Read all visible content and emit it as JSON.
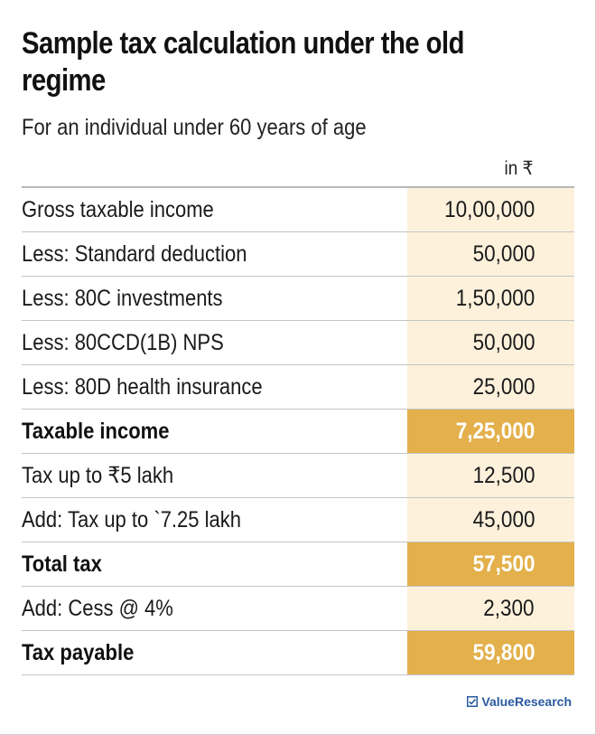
{
  "title": "Sample tax calculation under the old regime",
  "subtitle": "For an individual under 60 years of age",
  "unit": "in ₹",
  "rows": [
    {
      "label": "Gross taxable income",
      "value": "10,00,000",
      "strong": false
    },
    {
      "label": "Less: Standard deduction",
      "value": "50,000",
      "strong": false
    },
    {
      "label": "Less: 80C investments",
      "value": "1,50,000",
      "strong": false
    },
    {
      "label": "Less: 80CCD(1B) NPS",
      "value": "50,000",
      "strong": false
    },
    {
      "label": "Less: 80D health insurance",
      "value": "25,000",
      "strong": false
    },
    {
      "label": "Taxable income",
      "value": "7,25,000",
      "strong": true
    },
    {
      "label": "Tax up to ₹5 lakh",
      "value": "12,500",
      "strong": false
    },
    {
      "label": "Add: Tax up to `7.25 lakh",
      "value": "45,000",
      "strong": false
    },
    {
      "label": "Total tax",
      "value": "57,500",
      "strong": true
    },
    {
      "label": "Add: Cess @ 4%",
      "value": "2,300",
      "strong": false
    },
    {
      "label": "Tax payable",
      "value": "59,800",
      "strong": true
    }
  ],
  "brand": {
    "name": "ValueResearch",
    "icon": "value-research-logo-icon",
    "color": "#2a5aa0"
  },
  "colors": {
    "value_column": "#fdf1dc",
    "highlight": "#e3b04b",
    "highlight_text": "#ffffff"
  }
}
